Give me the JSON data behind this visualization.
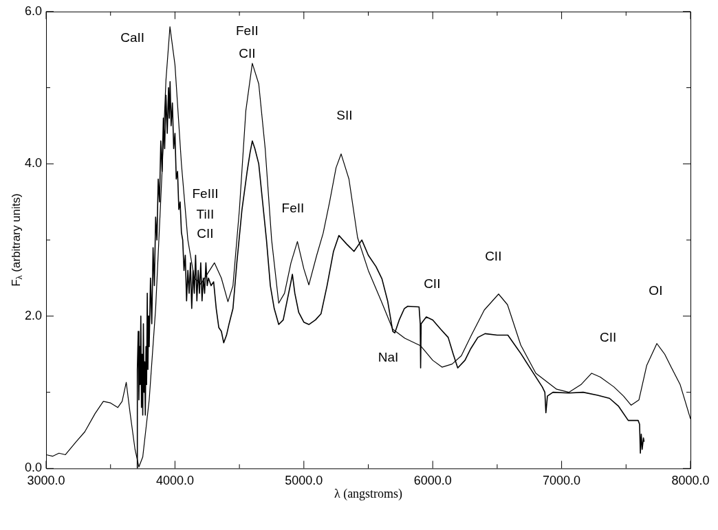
{
  "chart_data": {
    "type": "line",
    "xlabel": "λ (angstroms)",
    "ylabel": "F$_{λ}$ (arbitrary units)",
    "xlim": [
      3000,
      8000
    ],
    "ylim": [
      0,
      6
    ],
    "xticks": [
      {
        "value": 3000,
        "label": "3000.0"
      },
      {
        "value": 3500,
        "label": null
      },
      {
        "value": 4000,
        "label": "4000.0"
      },
      {
        "value": 4500,
        "label": null
      },
      {
        "value": 5000,
        "label": "5000.0"
      },
      {
        "value": 5500,
        "label": null
      },
      {
        "value": 6000,
        "label": "6000.0"
      },
      {
        "value": 6500,
        "label": null
      },
      {
        "value": 7000,
        "label": "7000.0"
      },
      {
        "value": 7500,
        "label": null
      },
      {
        "value": 8000,
        "label": "8000.0"
      }
    ],
    "yticks": [
      {
        "value": 0,
        "label": "0.0"
      },
      {
        "value": 1,
        "label": null
      },
      {
        "value": 2,
        "label": "2.0"
      },
      {
        "value": 3,
        "label": null
      },
      {
        "value": 4,
        "label": "4.0"
      },
      {
        "value": 5,
        "label": null
      },
      {
        "value": 6,
        "label": "6.0"
      }
    ],
    "series": [
      {
        "color": "#000000",
        "x": [
          3000,
          3050,
          3100,
          3150,
          3233,
          3300,
          3380,
          3444,
          3500,
          3556,
          3590,
          3622,
          3650,
          3690,
          3720,
          3750,
          3800,
          3850,
          3900,
          3930,
          3961,
          4000,
          4050,
          4100,
          4150,
          4200,
          4250,
          4306,
          4360,
          4411,
          4450,
          4500,
          4550,
          4600,
          4650,
          4700,
          4750,
          4805,
          4850,
          4900,
          4950,
          5000,
          5039,
          5100,
          5150,
          5200,
          5250,
          5289,
          5350,
          5417,
          5500,
          5600,
          5689,
          5783,
          5906,
          6000,
          6072,
          6150,
          6222,
          6300,
          6400,
          6511,
          6580,
          6683,
          6800,
          6961,
          7056,
          7150,
          7233,
          7300,
          7406,
          7480,
          7539,
          7600,
          7660,
          7739,
          7800,
          7850,
          7920,
          8000
        ],
        "values": [
          0.18,
          0.16,
          0.2,
          0.18,
          0.35,
          0.48,
          0.72,
          0.88,
          0.86,
          0.8,
          0.88,
          1.13,
          0.75,
          0.25,
          0.02,
          0.15,
          0.9,
          2.1,
          3.9,
          5.1,
          5.8,
          5.3,
          4.0,
          3.0,
          2.5,
          2.42,
          2.55,
          2.7,
          2.5,
          2.19,
          2.4,
          3.4,
          4.7,
          5.32,
          5.05,
          4.2,
          3.0,
          2.17,
          2.3,
          2.7,
          2.98,
          2.62,
          2.41,
          2.8,
          3.09,
          3.5,
          3.95,
          4.13,
          3.8,
          3.03,
          2.6,
          2.2,
          1.83,
          1.71,
          1.61,
          1.42,
          1.33,
          1.37,
          1.48,
          1.75,
          2.08,
          2.29,
          2.15,
          1.62,
          1.25,
          1.04,
          1.0,
          1.1,
          1.25,
          1.2,
          1.07,
          0.95,
          0.83,
          0.9,
          1.35,
          1.64,
          1.5,
          1.33,
          1.1,
          0.65
        ]
      },
      {
        "color": "#000000",
        "x": [
          3706,
          3708,
          3715,
          3720,
          3725,
          3730,
          3735,
          3740,
          3745,
          3750,
          3755,
          3760,
          3765,
          3770,
          3775,
          3780,
          3785,
          3790,
          3795,
          3800,
          3810,
          3820,
          3830,
          3840,
          3850,
          3860,
          3870,
          3880,
          3890,
          3900,
          3910,
          3920,
          3930,
          3940,
          3950,
          3956,
          3962,
          3970,
          3980,
          3990,
          4000,
          4010,
          4020,
          4030,
          4040,
          4050,
          4060,
          4070,
          4080,
          4090,
          4100,
          4110,
          4120,
          4130,
          4140,
          4150,
          4160,
          4170,
          4180,
          4190,
          4200,
          4210,
          4220,
          4230,
          4240,
          4250,
          4260,
          4280,
          4300,
          4320,
          4340,
          4360,
          4378,
          4400,
          4420,
          4450,
          4480,
          4520,
          4560,
          4583,
          4600,
          4620,
          4650,
          4680,
          4710,
          4740,
          4770,
          4805,
          4840,
          4870,
          4900,
          4911,
          4930,
          4960,
          5000,
          5039,
          5090,
          5133,
          5180,
          5230,
          5272,
          5330,
          5389,
          5450,
          5500,
          5560,
          5606,
          5650,
          5690,
          5706,
          5740,
          5780,
          5806,
          5894,
          5903,
          5906,
          5910,
          5950,
          6000,
          6061,
          6120,
          6161,
          6194,
          6250,
          6294,
          6350,
          6406,
          6500,
          6583,
          6683,
          6770,
          6850,
          6870,
          6878,
          6890,
          6933,
          7056,
          7167,
          7280,
          7372,
          7440,
          7517,
          7594,
          7605,
          7611,
          7618,
          7625,
          7635,
          7640
        ],
        "values": [
          0.0,
          1.3,
          1.8,
          0.9,
          1.6,
          1.1,
          2.0,
          0.8,
          1.5,
          0.7,
          1.9,
          1.0,
          1.4,
          0.7,
          1.6,
          1.1,
          2.3,
          1.3,
          2.0,
          1.6,
          2.5,
          1.9,
          2.9,
          2.4,
          3.3,
          3.0,
          3.8,
          3.5,
          4.3,
          3.9,
          4.6,
          4.2,
          4.9,
          4.4,
          5.0,
          4.6,
          5.08,
          4.5,
          4.8,
          4.2,
          4.4,
          3.8,
          3.9,
          3.4,
          3.5,
          3.1,
          3.0,
          2.6,
          2.8,
          2.2,
          2.6,
          2.3,
          2.7,
          2.1,
          2.6,
          2.3,
          2.8,
          2.2,
          2.6,
          2.3,
          2.7,
          2.2,
          2.5,
          2.3,
          2.7,
          2.4,
          2.5,
          2.4,
          2.45,
          2.1,
          1.85,
          1.8,
          1.65,
          1.75,
          1.9,
          2.1,
          2.7,
          3.4,
          3.9,
          4.15,
          4.3,
          4.2,
          4.0,
          3.5,
          3.0,
          2.4,
          2.1,
          1.89,
          1.95,
          2.2,
          2.45,
          2.55,
          2.3,
          2.05,
          1.92,
          1.89,
          1.95,
          2.03,
          2.4,
          2.85,
          3.06,
          2.95,
          2.85,
          3.0,
          2.8,
          2.65,
          2.49,
          2.2,
          1.8,
          1.78,
          1.95,
          2.1,
          2.13,
          2.12,
          1.9,
          1.32,
          1.9,
          1.99,
          1.95,
          1.83,
          1.72,
          1.49,
          1.32,
          1.42,
          1.57,
          1.72,
          1.77,
          1.75,
          1.75,
          1.51,
          1.28,
          1.07,
          1.0,
          0.73,
          0.95,
          1.0,
          0.99,
          1.0,
          0.96,
          0.92,
          0.82,
          0.63,
          0.63,
          0.58,
          0.2,
          0.45,
          0.25,
          0.4,
          0.35
        ]
      }
    ],
    "annotations": [
      "CaII",
      "FeII",
      "CII",
      "FeIII",
      "TiII",
      "CII",
      "FeII",
      "SII",
      "CII",
      "NaI",
      "CII",
      "CII",
      "OI"
    ]
  }
}
